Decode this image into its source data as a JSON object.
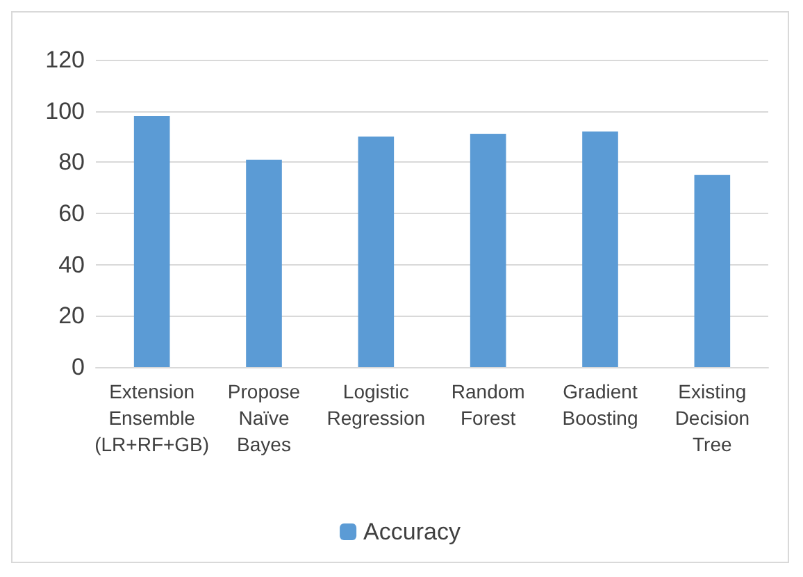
{
  "chart_data": {
    "type": "bar",
    "categories": [
      "Extension\nEnsemble\n(LR+RF+GB)",
      "Propose\nNaïve\nBayes",
      "Logistic\nRegression",
      "Random\nForest",
      "Gradient\nBoosting",
      "Existing\nDecision\nTree"
    ],
    "series": [
      {
        "name": "Accuracy",
        "color": "#5b9bd5",
        "values": [
          98,
          81,
          90,
          91,
          92,
          75
        ]
      }
    ],
    "ylim": [
      0,
      120
    ],
    "yticks": [
      0,
      20,
      40,
      60,
      80,
      100,
      120
    ],
    "grid": "y",
    "legend": "bottom"
  }
}
